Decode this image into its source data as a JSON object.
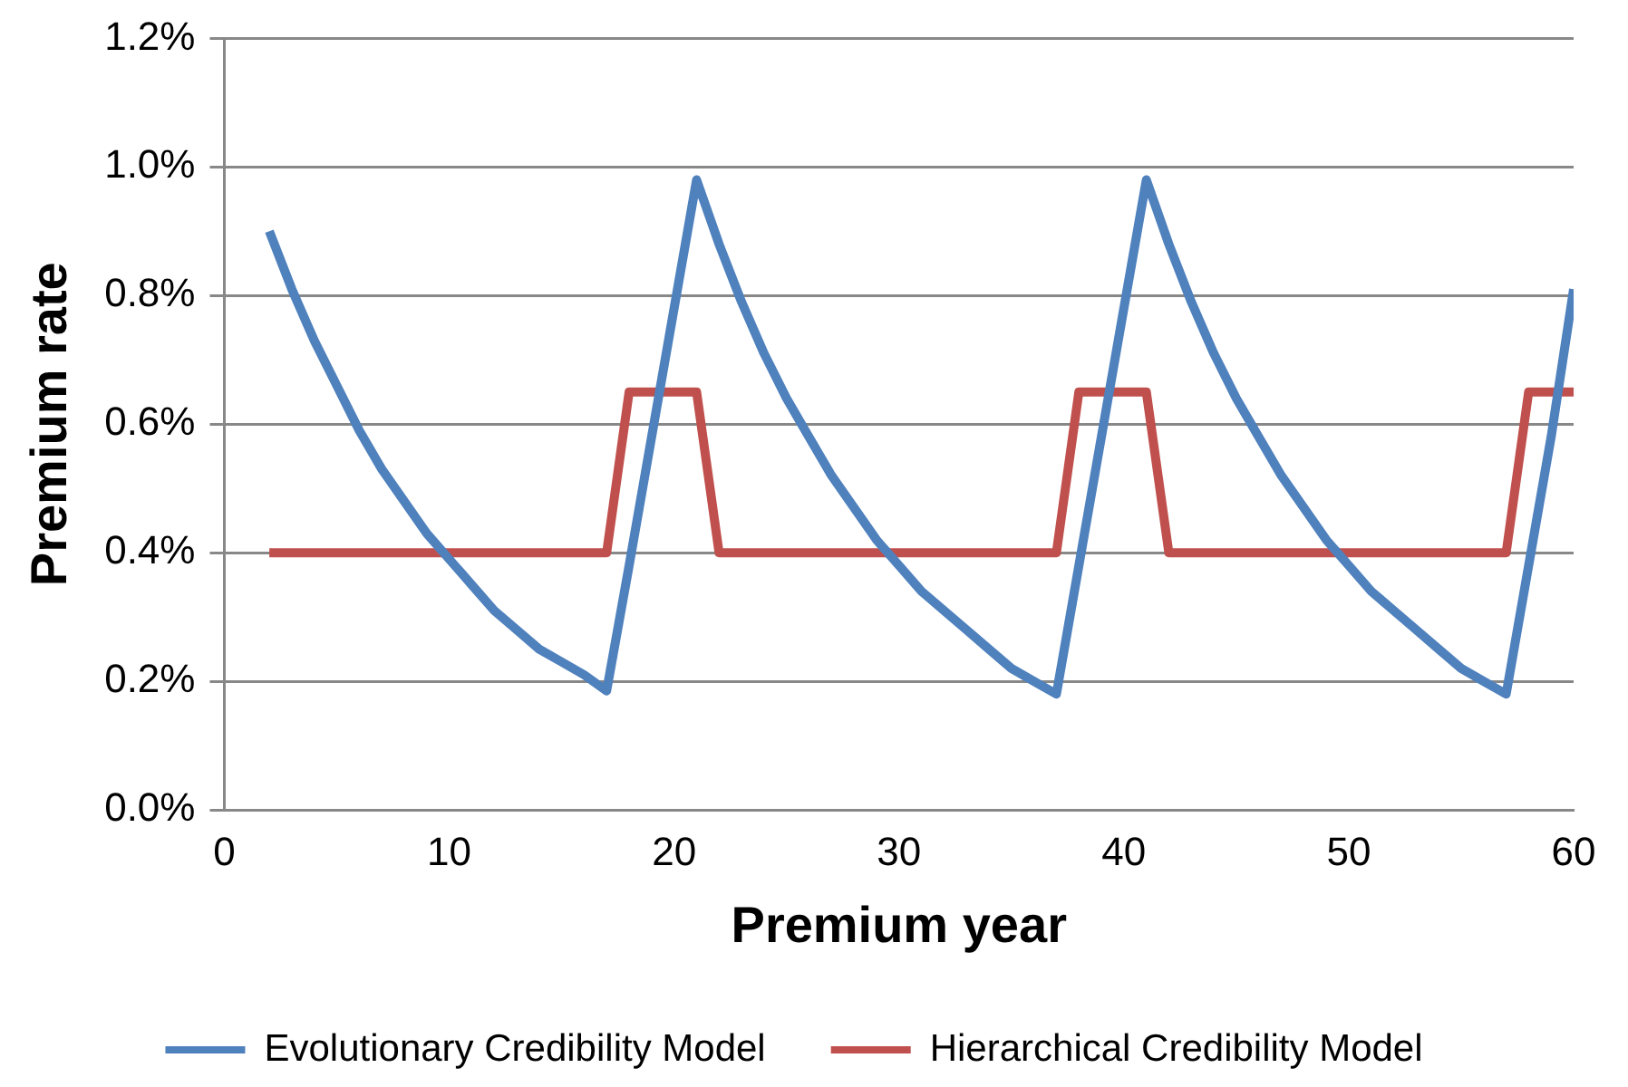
{
  "chart_data": {
    "type": "line",
    "xlabel": "Premium year",
    "ylabel": "Premium rate",
    "xlim": [
      0,
      60
    ],
    "xticks": [
      0,
      10,
      20,
      30,
      40,
      50,
      60
    ],
    "ylim": [
      0,
      1.2
    ],
    "yticks": [
      {
        "value": 0,
        "label": "0.0%"
      },
      {
        "value": 0.2,
        "label": "0.2%"
      },
      {
        "value": 0.4,
        "label": "0.4%"
      },
      {
        "value": 0.6,
        "label": "0.6%"
      },
      {
        "value": 0.8,
        "label": "0.8%"
      },
      {
        "value": 1.0,
        "label": "1.0%"
      },
      {
        "value": 1.2,
        "label": "1.2%"
      }
    ],
    "series": [
      {
        "name": "Evolutionary Credibility Model",
        "color": "#4f81bd",
        "x": [
          2,
          3,
          4,
          5,
          6,
          7,
          8,
          9,
          10,
          11,
          12,
          13,
          14,
          15,
          16,
          17,
          18,
          19,
          20,
          21,
          22,
          23,
          24,
          25,
          26,
          27,
          28,
          29,
          30,
          31,
          32,
          33,
          34,
          35,
          36,
          37,
          38,
          39,
          40,
          41,
          42,
          43,
          44,
          45,
          46,
          47,
          48,
          49,
          50,
          51,
          52,
          53,
          54,
          55,
          56,
          57,
          58,
          59,
          60
        ],
        "values": [
          0.9,
          0.81,
          0.73,
          0.66,
          0.59,
          0.53,
          0.48,
          0.43,
          0.39,
          0.35,
          0.31,
          0.28,
          0.25,
          0.23,
          0.21,
          0.185,
          0.38,
          0.58,
          0.78,
          0.98,
          0.88,
          0.79,
          0.71,
          0.64,
          0.58,
          0.52,
          0.47,
          0.42,
          0.38,
          0.34,
          0.31,
          0.28,
          0.25,
          0.22,
          0.2,
          0.18,
          0.38,
          0.58,
          0.78,
          0.98,
          0.88,
          0.79,
          0.71,
          0.64,
          0.58,
          0.52,
          0.47,
          0.42,
          0.38,
          0.34,
          0.31,
          0.28,
          0.25,
          0.22,
          0.2,
          0.18,
          0.38,
          0.58,
          0.81
        ]
      },
      {
        "name": "Hierarchical Credibility Model",
        "color": "#c0504d",
        "x": [
          2,
          3,
          4,
          5,
          6,
          7,
          8,
          9,
          10,
          11,
          12,
          13,
          14,
          15,
          16,
          17,
          18,
          19,
          20,
          21,
          22,
          23,
          24,
          25,
          26,
          27,
          28,
          29,
          30,
          31,
          32,
          33,
          34,
          35,
          36,
          37,
          38,
          39,
          40,
          41,
          42,
          43,
          44,
          45,
          46,
          47,
          48,
          49,
          50,
          51,
          52,
          53,
          54,
          55,
          56,
          57,
          58,
          59,
          60
        ],
        "values": [
          0.4,
          0.4,
          0.4,
          0.4,
          0.4,
          0.4,
          0.4,
          0.4,
          0.4,
          0.4,
          0.4,
          0.4,
          0.4,
          0.4,
          0.4,
          0.4,
          0.65,
          0.65,
          0.65,
          0.65,
          0.4,
          0.4,
          0.4,
          0.4,
          0.4,
          0.4,
          0.4,
          0.4,
          0.4,
          0.4,
          0.4,
          0.4,
          0.4,
          0.4,
          0.4,
          0.4,
          0.65,
          0.65,
          0.65,
          0.65,
          0.4,
          0.4,
          0.4,
          0.4,
          0.4,
          0.4,
          0.4,
          0.4,
          0.4,
          0.4,
          0.4,
          0.4,
          0.4,
          0.4,
          0.4,
          0.4,
          0.65,
          0.65,
          0.65
        ]
      }
    ],
    "grid": "y",
    "legend": "bottom",
    "marker": "none",
    "line_style": "solid"
  }
}
